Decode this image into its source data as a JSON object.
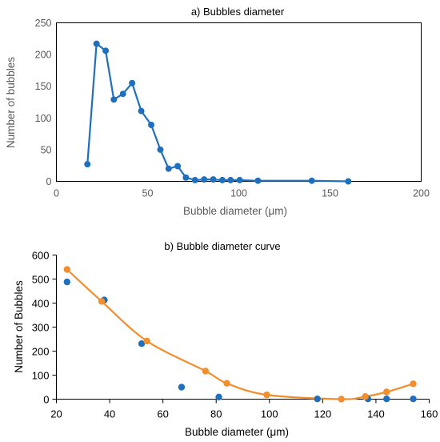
{
  "chart_data": [
    {
      "type": "line",
      "title": "a) Bubbles diameter",
      "xlabel": "Bubble diameter (μm)",
      "ylabel": "Number of bubbles",
      "xlim": [
        0,
        200
      ],
      "ylim": [
        0,
        250
      ],
      "xticks": [
        0,
        50,
        100,
        150,
        200
      ],
      "yticks": [
        0,
        50,
        100,
        150,
        200,
        250
      ],
      "grid": false,
      "legend": "none",
      "series": [
        {
          "color": "#1f6fbf",
          "markers": true,
          "points": [
            [
              17,
              27
            ],
            [
              22,
              217
            ],
            [
              27,
              206
            ],
            [
              31.5,
              129
            ],
            [
              36.5,
              138
            ],
            [
              41.5,
              155
            ],
            [
              46.5,
              111
            ],
            [
              52,
              89
            ],
            [
              57,
              50
            ],
            [
              61.5,
              20
            ],
            [
              66.5,
              24
            ],
            [
              71,
              6
            ],
            [
              76,
              2
            ],
            [
              81,
              3
            ],
            [
              86,
              3
            ],
            [
              91,
              2
            ],
            [
              95.5,
              2
            ],
            [
              100.5,
              2
            ],
            [
              110.5,
              1
            ],
            [
              140,
              1
            ],
            [
              160,
              0
            ]
          ]
        }
      ]
    },
    {
      "type": "scatter",
      "title": "b) Bubble diameter curve",
      "xlabel": "Bubble diameter (μm)",
      "ylabel": "Number of Bubbles",
      "xlim": [
        20,
        160
      ],
      "ylim": [
        0,
        600
      ],
      "xticks": [
        20,
        40,
        60,
        80,
        100,
        120,
        140,
        160
      ],
      "yticks": [
        0,
        100,
        200,
        300,
        400,
        500,
        600
      ],
      "grid": false,
      "legend": "none",
      "series": [
        {
          "color": "#1f6fbf",
          "markers": true,
          "line": false,
          "points": [
            [
              24,
              488
            ],
            [
              38,
              413
            ],
            [
              52,
              231
            ],
            [
              67,
              50
            ],
            [
              81,
              9
            ],
            [
              118,
              1
            ],
            [
              137,
              1
            ],
            [
              144,
              1
            ],
            [
              154,
              1
            ]
          ]
        },
        {
          "color": "#f28e2b",
          "markers": true,
          "line": "smooth",
          "points": [
            [
              24,
              540
            ],
            [
              37,
              407
            ],
            [
              54,
              242
            ],
            [
              76,
              117
            ],
            [
              84,
              66
            ],
            [
              99,
              18
            ],
            [
              127,
              0
            ],
            [
              136,
              11
            ],
            [
              144,
              30
            ],
            [
              154,
              64
            ]
          ]
        }
      ]
    }
  ]
}
